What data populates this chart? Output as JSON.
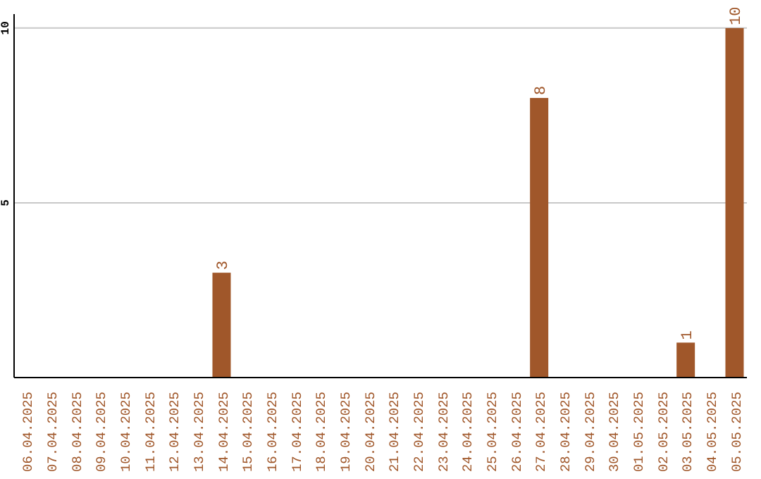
{
  "chart_data": {
    "type": "bar",
    "categories": [
      "06.04.2025",
      "07.04.2025",
      "08.04.2025",
      "09.04.2025",
      "10.04.2025",
      "11.04.2025",
      "12.04.2025",
      "13.04.2025",
      "14.04.2025",
      "15.04.2025",
      "16.04.2025",
      "17.04.2025",
      "18.04.2025",
      "19.04.2025",
      "20.04.2025",
      "21.04.2025",
      "22.04.2025",
      "23.04.2025",
      "24.04.2025",
      "25.04.2025",
      "26.04.2025",
      "27.04.2025",
      "28.04.2025",
      "29.04.2025",
      "30.04.2025",
      "01.05.2025",
      "02.05.2025",
      "03.05.2025",
      "04.05.2025",
      "05.05.2025"
    ],
    "values": [
      0,
      0,
      0,
      0,
      0,
      0,
      0,
      0,
      3,
      0,
      0,
      0,
      0,
      0,
      0,
      0,
      0,
      0,
      0,
      0,
      0,
      8,
      0,
      0,
      0,
      0,
      0,
      1,
      0,
      10
    ],
    "value_labels": [
      null,
      null,
      null,
      null,
      null,
      null,
      null,
      null,
      "3",
      null,
      null,
      null,
      null,
      null,
      null,
      null,
      null,
      null,
      null,
      null,
      null,
      "8",
      null,
      null,
      null,
      null,
      null,
      "1",
      null,
      "10"
    ],
    "color": "#a0572a",
    "ylim": [
      0,
      10.4
    ],
    "yticks": [
      5,
      10
    ],
    "grid": "y"
  }
}
